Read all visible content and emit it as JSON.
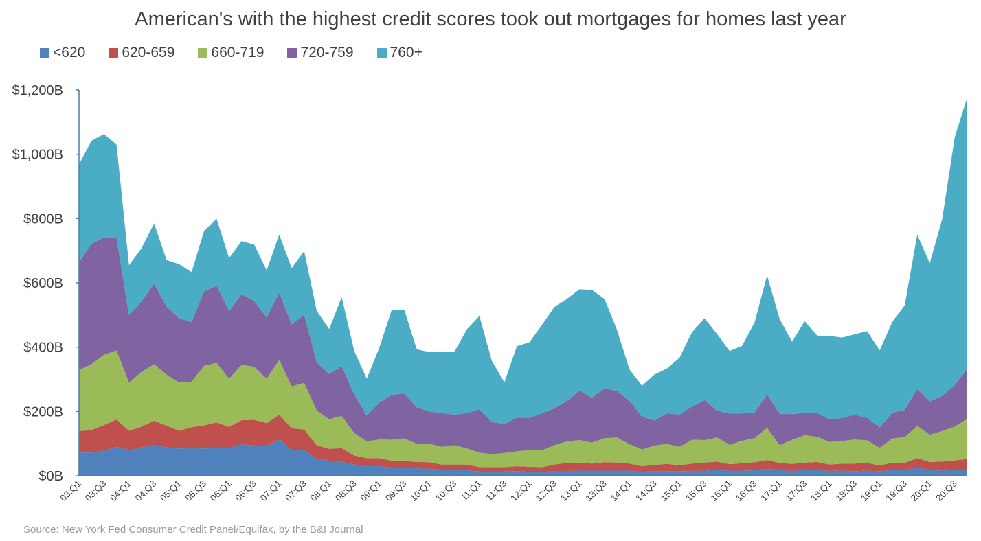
{
  "chart_data": {
    "type": "area",
    "stacked": true,
    "title": "American's with the highest credit scores took out mortgages for homes last year",
    "legend_position": "top-left",
    "grid": false,
    "ylim": [
      0,
      1200
    ],
    "y_ticks": [
      "$0B",
      "$200B",
      "$400B",
      "$600B",
      "$800B",
      "$1,000B",
      "$1,200B"
    ],
    "x": [
      "03:Q1",
      "03:Q2",
      "03:Q3",
      "03:Q4",
      "04:Q1",
      "04:Q2",
      "04:Q3",
      "04:Q4",
      "05:Q1",
      "05:Q2",
      "05:Q3",
      "05:Q4",
      "06:Q1",
      "06:Q2",
      "06:Q3",
      "06:Q4",
      "07:Q1",
      "07:Q2",
      "07:Q3",
      "07:Q4",
      "08:Q1",
      "08:Q2",
      "08:Q3",
      "08:Q4",
      "09:Q1",
      "09:Q2",
      "09:Q3",
      "09:Q4",
      "10:Q1",
      "10:Q2",
      "10:Q3",
      "10:Q4",
      "11:Q1",
      "11:Q2",
      "11:Q3",
      "11:Q4",
      "12:Q1",
      "12:Q2",
      "12:Q3",
      "12:Q4",
      "13:Q1",
      "13:Q2",
      "13:Q3",
      "13:Q4",
      "14:Q1",
      "14:Q2",
      "14:Q3",
      "14:Q4",
      "15:Q1",
      "15:Q2",
      "15:Q3",
      "15:Q4",
      "16:Q1",
      "16:Q2",
      "16:Q3",
      "16:Q4",
      "17:Q1",
      "17:Q2",
      "17:Q3",
      "17:Q4",
      "18:Q1",
      "18:Q2",
      "18:Q3",
      "18:Q4",
      "19:Q1",
      "19:Q2",
      "19:Q3",
      "19:Q4",
      "20:Q1",
      "20:Q2",
      "20:Q3",
      "20:Q4"
    ],
    "x_tick_labels": [
      "03:Q1",
      "03:Q3",
      "04:Q1",
      "04:Q3",
      "05:Q1",
      "05:Q3",
      "06:Q1",
      "06:Q3",
      "07:Q1",
      "07:Q3",
      "08:Q1",
      "08:Q3",
      "09:Q1",
      "09:Q3",
      "10:Q1",
      "10:Q3",
      "11:Q1",
      "11:Q3",
      "12:Q1",
      "12:Q3",
      "13:Q1",
      "13:Q3",
      "14:Q1",
      "14:Q3",
      "15:Q1",
      "15:Q3",
      "16:Q1",
      "16:Q3",
      "17:Q1",
      "17:Q3",
      "18:Q1",
      "18:Q3",
      "19:Q1",
      "19:Q3",
      "20:Q1",
      "20:Q3"
    ],
    "series": [
      {
        "name": "<620",
        "color": "#4F81BD",
        "values": [
          72,
          72,
          78,
          90,
          80,
          88,
          96,
          88,
          85,
          86,
          85,
          86,
          86,
          98,
          94,
          92,
          114,
          80,
          80,
          53,
          47,
          44,
          35,
          30,
          30,
          25,
          25,
          23,
          22,
          18,
          18,
          17,
          13,
          12,
          13,
          15,
          12,
          11,
          15,
          15,
          16,
          16,
          16,
          16,
          16,
          12,
          14,
          14,
          14,
          15,
          16,
          18,
          16,
          16,
          17,
          21,
          18,
          15,
          18,
          19,
          15,
          16,
          14,
          16,
          14,
          18,
          18,
          25,
          18,
          16,
          18,
          18
        ]
      },
      {
        "name": "620-659",
        "color": "#C0504D",
        "values": [
          67,
          70,
          80,
          85,
          60,
          65,
          75,
          68,
          55,
          65,
          72,
          80,
          66,
          75,
          80,
          72,
          76,
          68,
          64,
          42,
          37,
          42,
          28,
          25,
          25,
          22,
          21,
          20,
          20,
          17,
          17,
          18,
          14,
          15,
          14,
          15,
          16,
          16,
          20,
          25,
          25,
          22,
          26,
          25,
          22,
          18,
          20,
          23,
          19,
          23,
          25,
          26,
          20,
          23,
          25,
          28,
          22,
          22,
          23,
          24,
          20,
          22,
          24,
          24,
          18,
          23,
          22,
          30,
          25,
          28,
          30,
          34
        ]
      },
      {
        "name": "660-719",
        "color": "#9BBB59",
        "values": [
          190,
          205,
          218,
          215,
          150,
          170,
          176,
          158,
          150,
          142,
          185,
          185,
          150,
          172,
          165,
          138,
          170,
          130,
          145,
          108,
          92,
          100,
          70,
          52,
          58,
          65,
          70,
          57,
          58,
          55,
          60,
          50,
          45,
          40,
          44,
          46,
          52,
          52,
          60,
          67,
          70,
          65,
          75,
          78,
          60,
          52,
          60,
          62,
          57,
          74,
          70,
          75,
          60,
          70,
          75,
          100,
          55,
          75,
          85,
          78,
          70,
          70,
          75,
          70,
          55,
          75,
          80,
          100,
          85,
          95,
          105,
          125
        ]
      },
      {
        "name": "720-759",
        "color": "#8064A2",
        "values": [
          335,
          375,
          365,
          350,
          210,
          220,
          250,
          212,
          200,
          185,
          232,
          240,
          210,
          220,
          205,
          190,
          210,
          192,
          212,
          150,
          140,
          155,
          120,
          80,
          115,
          140,
          140,
          113,
          100,
          105,
          95,
          110,
          135,
          100,
          90,
          105,
          100,
          115,
          115,
          125,
          154,
          140,
          155,
          145,
          135,
          102,
          78,
          95,
          100,
          103,
          124,
          84,
          97,
          85,
          80,
          104,
          98,
          80,
          70,
          75,
          70,
          72,
          77,
          70,
          63,
          80,
          85,
          115,
          103,
          110,
          130,
          155
        ]
      },
      {
        "name": "760+",
        "color": "#4BACC6",
        "values": [
          305,
          320,
          322,
          290,
          155,
          165,
          188,
          145,
          168,
          155,
          188,
          208,
          165,
          165,
          175,
          147,
          180,
          176,
          198,
          160,
          140,
          215,
          135,
          115,
          170,
          265,
          260,
          180,
          185,
          190,
          195,
          260,
          290,
          190,
          130,
          222,
          235,
          275,
          315,
          318,
          315,
          335,
          278,
          190,
          98,
          96,
          143,
          140,
          177,
          232,
          255,
          238,
          195,
          210,
          280,
          370,
          295,
          225,
          285,
          240,
          260,
          250,
          250,
          270,
          240,
          282,
          325,
          480,
          430,
          550,
          770,
          845
        ]
      }
    ]
  },
  "source_note": "Source: New York Fed Consumer Credit Panel/Equifax, by the B&I Journal"
}
